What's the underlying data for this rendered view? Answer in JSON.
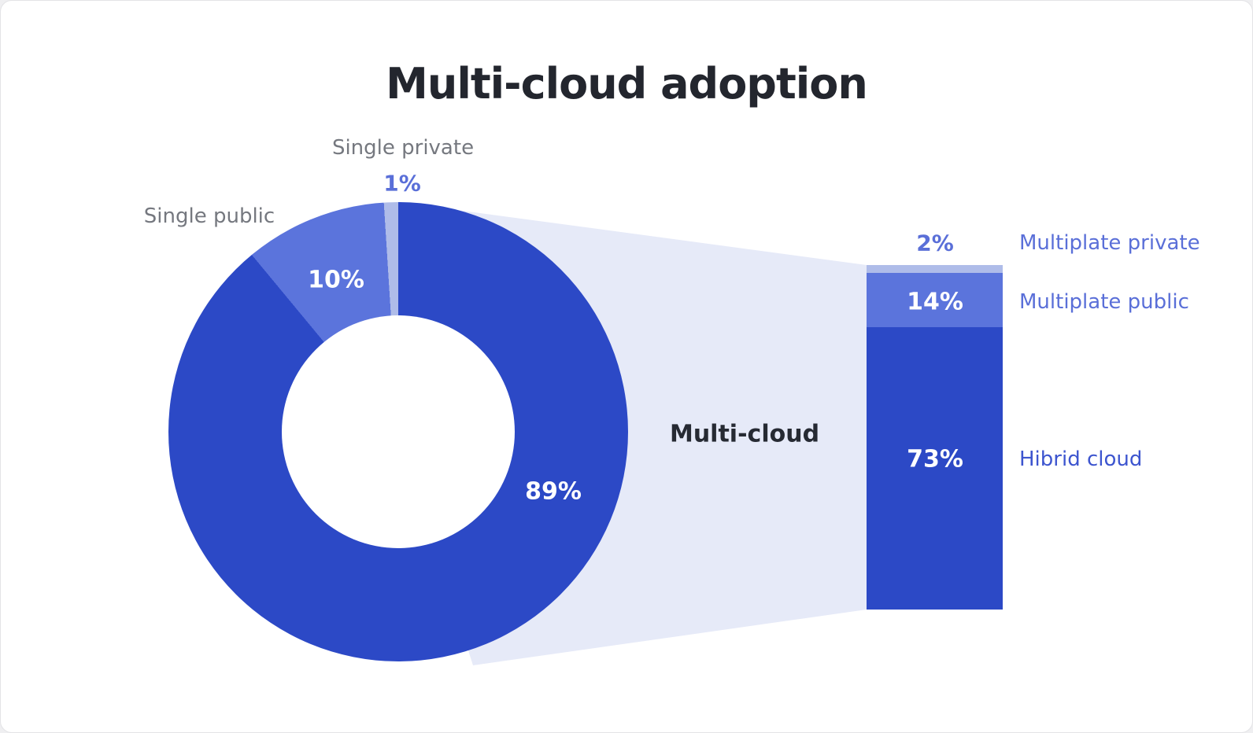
{
  "title": "Multi-cloud adoption",
  "colors": {
    "primary": "#2C49C6",
    "secondary": "#5B74DC",
    "tertiary": "#AFBCE9",
    "band": "#E6EAF8",
    "gray_label": "#75787F",
    "blue_label": "#5A6FD8",
    "hibrid_label": "#3D55CF",
    "title_color": "#23262E",
    "value_white": "#FFFFFF",
    "page_bg": "#EFEFF1",
    "card_bg": "#FFFFFF"
  },
  "chart_data": {
    "type": "pie-of-bar",
    "title": "Multi-cloud adoption",
    "donut": {
      "start_angle_deg": 0,
      "direction": "clockwise",
      "segments": [
        {
          "label": "Multi-cloud",
          "value": 89,
          "display": "89%",
          "color_key": "primary"
        },
        {
          "label": "Single public",
          "value": 10,
          "display": "10%",
          "color_key": "secondary"
        },
        {
          "label": "Single private",
          "value": 1,
          "display": "1%",
          "color_key": "tertiary"
        }
      ]
    },
    "bar": {
      "label": "Multi-cloud",
      "total": 89,
      "segments": [
        {
          "label": "Multiplate private",
          "value": 2,
          "display": "2%",
          "color_key": "tertiary"
        },
        {
          "label": "Multiplate public",
          "value": 14,
          "display": "14%",
          "color_key": "secondary"
        },
        {
          "label": "Hibrid cloud",
          "value": 73,
          "display": "73%",
          "color_key": "primary"
        }
      ]
    }
  }
}
